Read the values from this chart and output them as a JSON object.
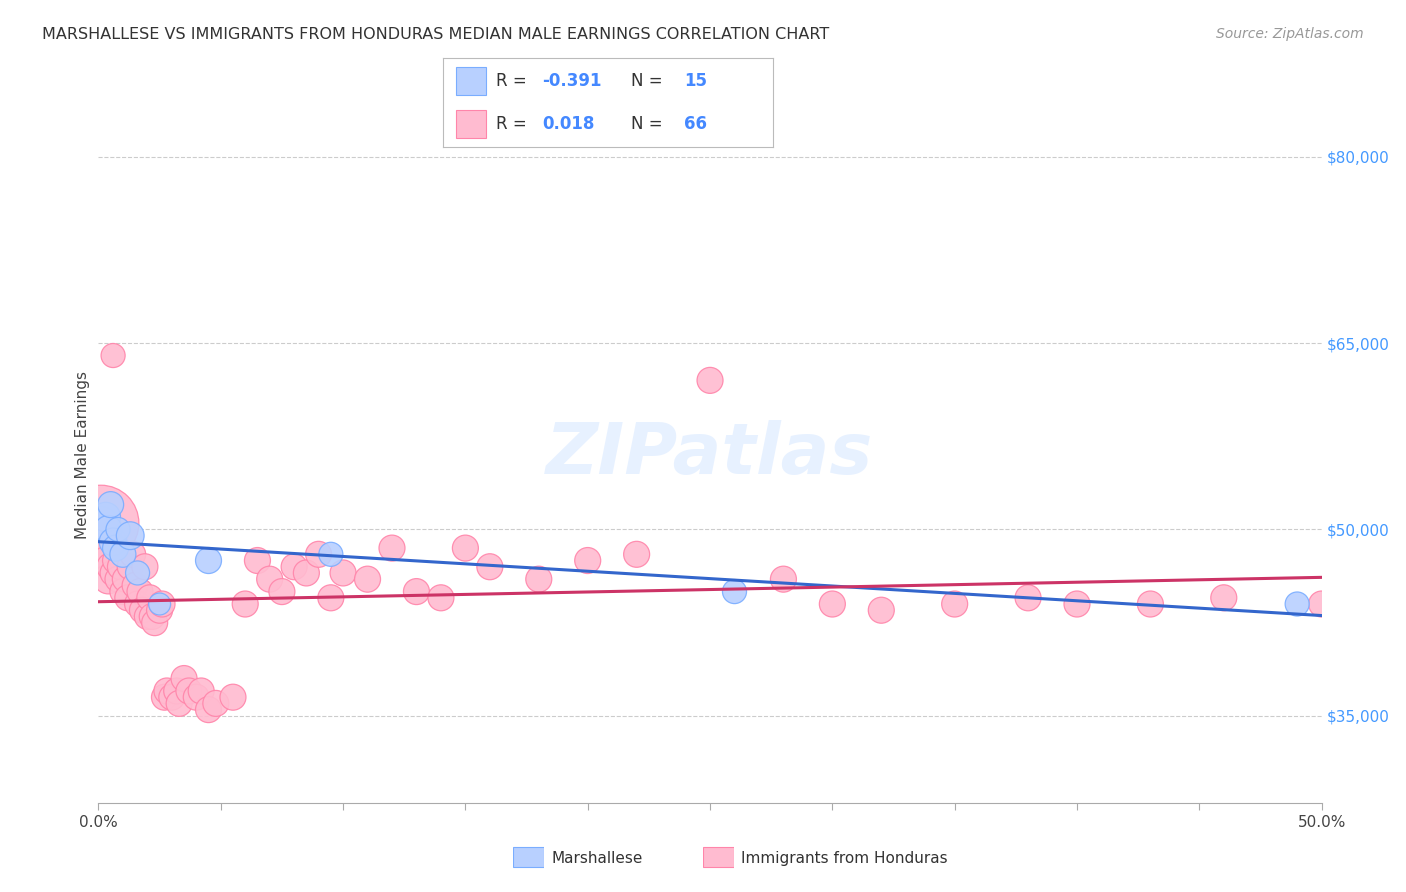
{
  "title": "MARSHALLESE VS IMMIGRANTS FROM HONDURAS MEDIAN MALE EARNINGS CORRELATION CHART",
  "source": "Source: ZipAtlas.com",
  "ylabel": "Median Male Earnings",
  "xlim": [
    0.0,
    0.5
  ],
  "ylim": [
    28000,
    84000
  ],
  "x_ticks": [
    0.0,
    0.05,
    0.1,
    0.15,
    0.2,
    0.25,
    0.3,
    0.35,
    0.4,
    0.45,
    0.5
  ],
  "y_ticks": [
    35000,
    50000,
    65000,
    80000
  ],
  "y_tick_labels": [
    "$35,000",
    "$50,000",
    "$65,000",
    "$80,000"
  ],
  "grid_color": "#cccccc",
  "background_color": "#ffffff",
  "legend_labels": [
    "Marshallese",
    "Immigrants from Honduras"
  ],
  "legend_R": [
    -0.391,
    0.018
  ],
  "legend_N": [
    15,
    66
  ],
  "blue_color": "#7aadff",
  "pink_color": "#ff85aa",
  "blue_fill": "#b8d0ff",
  "pink_fill": "#ffbbd0",
  "watermark_text": "ZIPatlas",
  "marshallese_x": [
    0.001,
    0.003,
    0.004,
    0.005,
    0.006,
    0.007,
    0.008,
    0.01,
    0.013,
    0.016,
    0.025,
    0.045,
    0.095,
    0.26,
    0.49
  ],
  "marshallese_y": [
    50500,
    51000,
    50000,
    52000,
    49000,
    48500,
    50000,
    48000,
    49500,
    46500,
    44000,
    47500,
    48000,
    45000,
    44000
  ],
  "marshallese_size": [
    120,
    90,
    80,
    70,
    80,
    70,
    60,
    70,
    80,
    60,
    50,
    70,
    60,
    60,
    60
  ],
  "honduras_x": [
    0.001,
    0.002,
    0.003,
    0.004,
    0.005,
    0.006,
    0.006,
    0.007,
    0.008,
    0.009,
    0.01,
    0.011,
    0.012,
    0.013,
    0.014,
    0.015,
    0.016,
    0.017,
    0.018,
    0.019,
    0.02,
    0.021,
    0.022,
    0.023,
    0.025,
    0.026,
    0.027,
    0.028,
    0.03,
    0.032,
    0.033,
    0.035,
    0.037,
    0.04,
    0.042,
    0.045,
    0.048,
    0.055,
    0.06,
    0.065,
    0.07,
    0.075,
    0.08,
    0.085,
    0.09,
    0.095,
    0.1,
    0.11,
    0.12,
    0.13,
    0.14,
    0.15,
    0.16,
    0.18,
    0.2,
    0.22,
    0.25,
    0.28,
    0.3,
    0.32,
    0.35,
    0.38,
    0.4,
    0.43,
    0.46,
    0.5
  ],
  "honduras_y": [
    50500,
    48000,
    47500,
    46000,
    47000,
    46500,
    64000,
    47500,
    46000,
    47000,
    45000,
    46000,
    44500,
    47000,
    48000,
    45500,
    44000,
    45000,
    43500,
    47000,
    43000,
    44500,
    43000,
    42500,
    43500,
    44000,
    36500,
    37000,
    36500,
    37000,
    36000,
    38000,
    37000,
    36500,
    37000,
    35500,
    36000,
    36500,
    44000,
    47500,
    46000,
    45000,
    47000,
    46500,
    48000,
    44500,
    46500,
    46000,
    48500,
    45000,
    44500,
    48500,
    47000,
    46000,
    47500,
    48000,
    62000,
    46000,
    44000,
    43500,
    44000,
    44500,
    44000,
    44000,
    44500,
    44000
  ],
  "honduras_size": [
    600,
    90,
    80,
    90,
    80,
    70,
    60,
    70,
    70,
    70,
    70,
    70,
    70,
    70,
    70,
    70,
    70,
    70,
    70,
    70,
    70,
    70,
    70,
    70,
    70,
    70,
    70,
    70,
    70,
    70,
    70,
    70,
    70,
    70,
    70,
    70,
    70,
    70,
    70,
    70,
    70,
    70,
    70,
    70,
    70,
    70,
    70,
    70,
    70,
    70,
    70,
    70,
    70,
    70,
    70,
    70,
    70,
    70,
    70,
    70,
    70,
    70,
    70,
    70,
    70,
    70
  ]
}
